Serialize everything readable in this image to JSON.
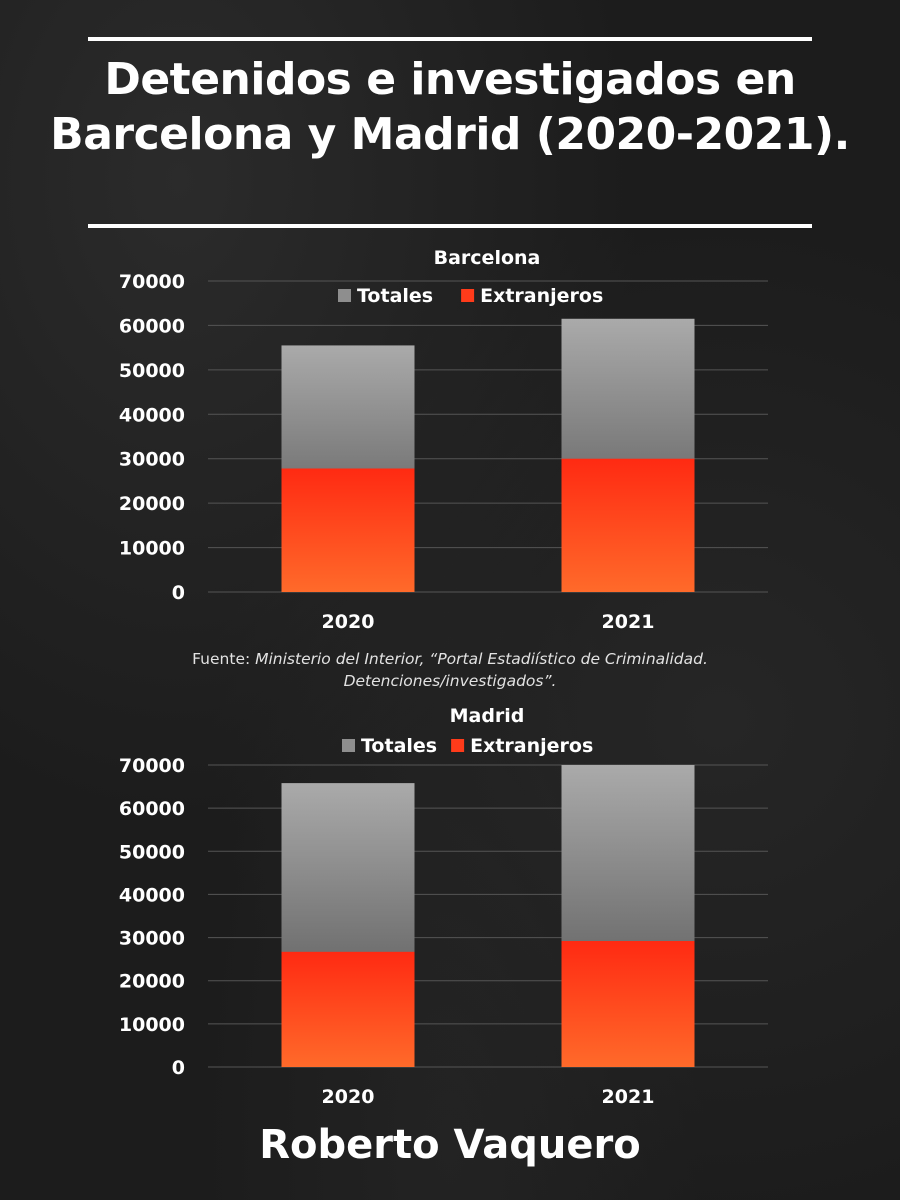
{
  "title": "Detenidos e investigados en Barcelona y Madrid (2020-2021).",
  "source": {
    "prefix": "Fuente: ",
    "text": "Ministerio del Interior, “Portal Estadiístico de Criminalidad. Detenciones/investigados”."
  },
  "author": "Roberto Vaquero",
  "colors": {
    "totales": "#8e8e8e",
    "extranjeros": "#ff3b1a",
    "grid": "#555555",
    "text": "#ffffff"
  },
  "chart_data": [
    {
      "type": "bar",
      "title": "Barcelona",
      "categories": [
        "2020",
        "2021"
      ],
      "series": [
        {
          "name": "Totales",
          "values": [
            55500,
            61500
          ]
        },
        {
          "name": "Extranjeros",
          "values": [
            27800,
            30000
          ]
        }
      ],
      "ylim": [
        0,
        70000
      ],
      "yticks": [
        "0",
        "10000",
        "20000",
        "30000",
        "40000",
        "50000",
        "60000",
        "70000"
      ],
      "grid": true,
      "legend": "top"
    },
    {
      "type": "bar",
      "title": "Madrid",
      "categories": [
        "2020",
        "2021"
      ],
      "series": [
        {
          "name": "Totales",
          "values": [
            65800,
            70000
          ]
        },
        {
          "name": "Extranjeros",
          "values": [
            26700,
            29200
          ]
        }
      ],
      "ylim": [
        0,
        70000
      ],
      "yticks": [
        "0",
        "10000",
        "20000",
        "30000",
        "40000",
        "50000",
        "60000",
        "70000"
      ],
      "grid": true,
      "legend": "top"
    }
  ]
}
